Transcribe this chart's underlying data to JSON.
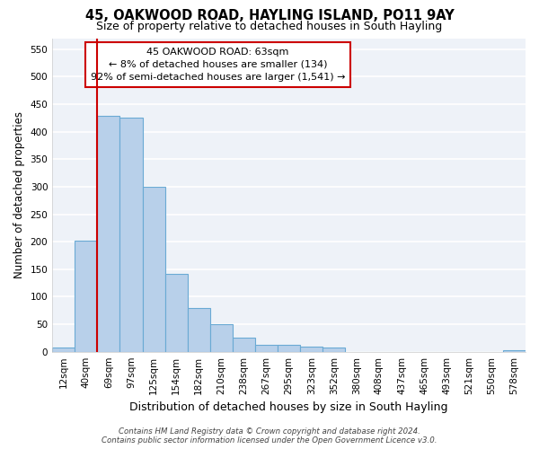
{
  "title": "45, OAKWOOD ROAD, HAYLING ISLAND, PO11 9AY",
  "subtitle": "Size of property relative to detached houses in South Hayling",
  "xlabel": "Distribution of detached houses by size in South Hayling",
  "ylabel": "Number of detached properties",
  "categories": [
    "12sqm",
    "40sqm",
    "69sqm",
    "97sqm",
    "125sqm",
    "154sqm",
    "182sqm",
    "210sqm",
    "238sqm",
    "267sqm",
    "295sqm",
    "323sqm",
    "352sqm",
    "380sqm",
    "408sqm",
    "437sqm",
    "465sqm",
    "493sqm",
    "521sqm",
    "550sqm",
    "578sqm"
  ],
  "values": [
    8,
    202,
    428,
    425,
    300,
    142,
    80,
    50,
    25,
    12,
    13,
    9,
    7,
    0,
    0,
    0,
    0,
    0,
    0,
    0,
    2
  ],
  "bar_color": "#b8d0ea",
  "bar_edgecolor": "#6aaad4",
  "background_color": "#eef2f8",
  "grid_color": "#ffffff",
  "vline_x_index": 2,
  "vline_color": "#cc0000",
  "annotation_line1": "45 OAKWOOD ROAD: 63sqm",
  "annotation_line2": "← 8% of detached houses are smaller (134)",
  "annotation_line3": "92% of semi-detached houses are larger (1,541) →",
  "annotation_box_color": "#ffffff",
  "annotation_box_edgecolor": "#cc0000",
  "footer_line1": "Contains HM Land Registry data © Crown copyright and database right 2024.",
  "footer_line2": "Contains public sector information licensed under the Open Government Licence v3.0.",
  "ylim": [
    0,
    570
  ],
  "yticks": [
    0,
    50,
    100,
    150,
    200,
    250,
    300,
    350,
    400,
    450,
    500,
    550
  ],
  "title_fontsize": 10.5,
  "subtitle_fontsize": 9,
  "tick_fontsize": 7.5,
  "xlabel_fontsize": 9,
  "ylabel_fontsize": 8.5
}
